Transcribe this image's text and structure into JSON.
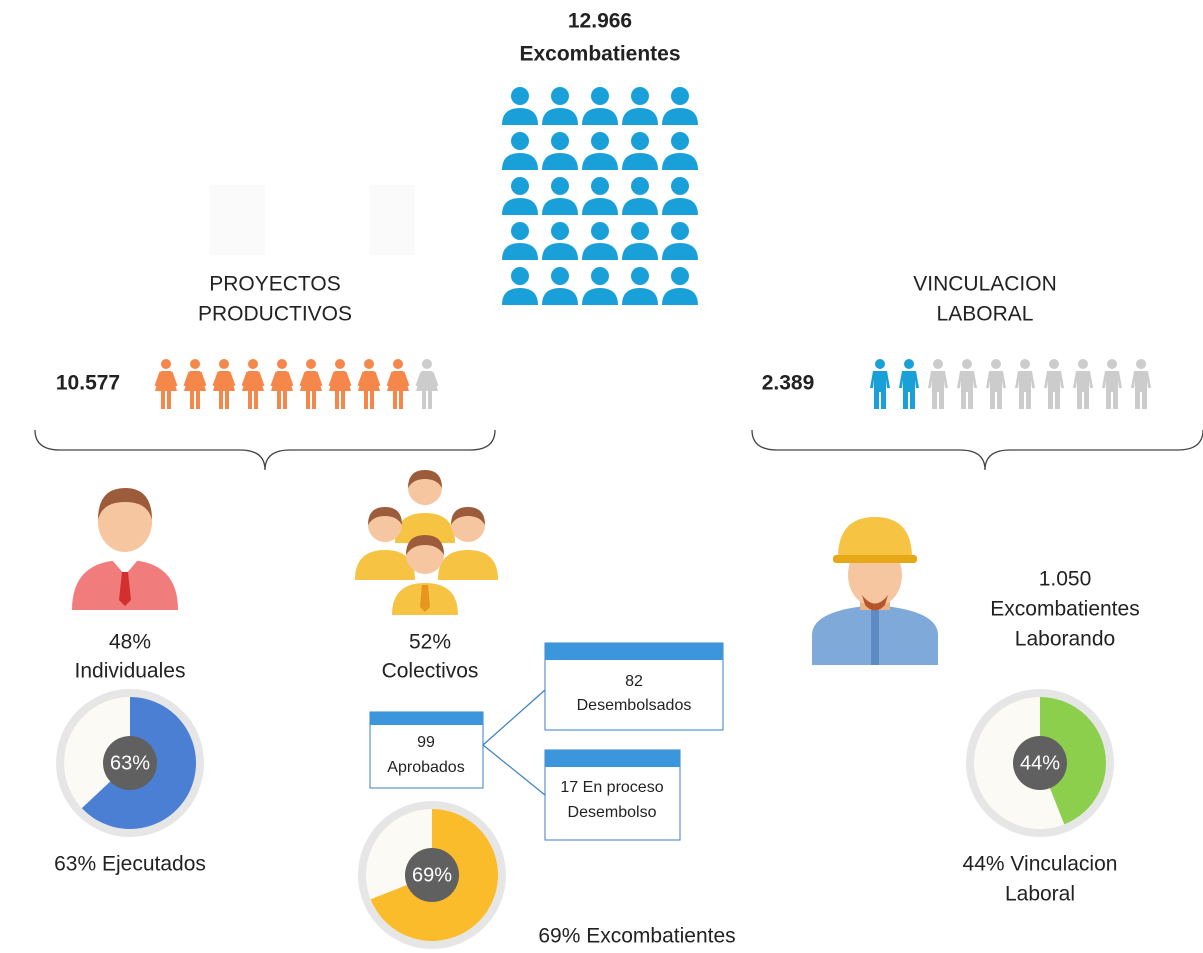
{
  "header": {
    "total": "12.966",
    "label": "Excombatientes"
  },
  "productive": {
    "title": [
      "PROYECTOS",
      "PRODUCTIVOS"
    ],
    "count": "10.577",
    "individual": {
      "percent": "48%",
      "label": "Individuales",
      "gauge": {
        "value": 63,
        "label": "63%"
      },
      "caption": "63% Ejecutados"
    },
    "collective": {
      "percent": "52%",
      "label": "Colectivos",
      "gauge": {
        "value": 69,
        "label": "69%"
      },
      "caption": "69% Excombatientes",
      "approved": [
        "99",
        "Aprobados"
      ],
      "disbursed": [
        "82",
        "Desembolsados"
      ],
      "in_process": [
        "17 En proceso",
        "Desembolso"
      ]
    }
  },
  "employment": {
    "title": [
      "VINCULACION",
      "LABORAL"
    ],
    "count": "2.389",
    "working": [
      "1.050",
      "Excombatientes",
      "Laborando"
    ],
    "gauge": {
      "value": 44,
      "label": "44%"
    },
    "caption": [
      "44% Vinculacion",
      "Laboral"
    ]
  }
}
